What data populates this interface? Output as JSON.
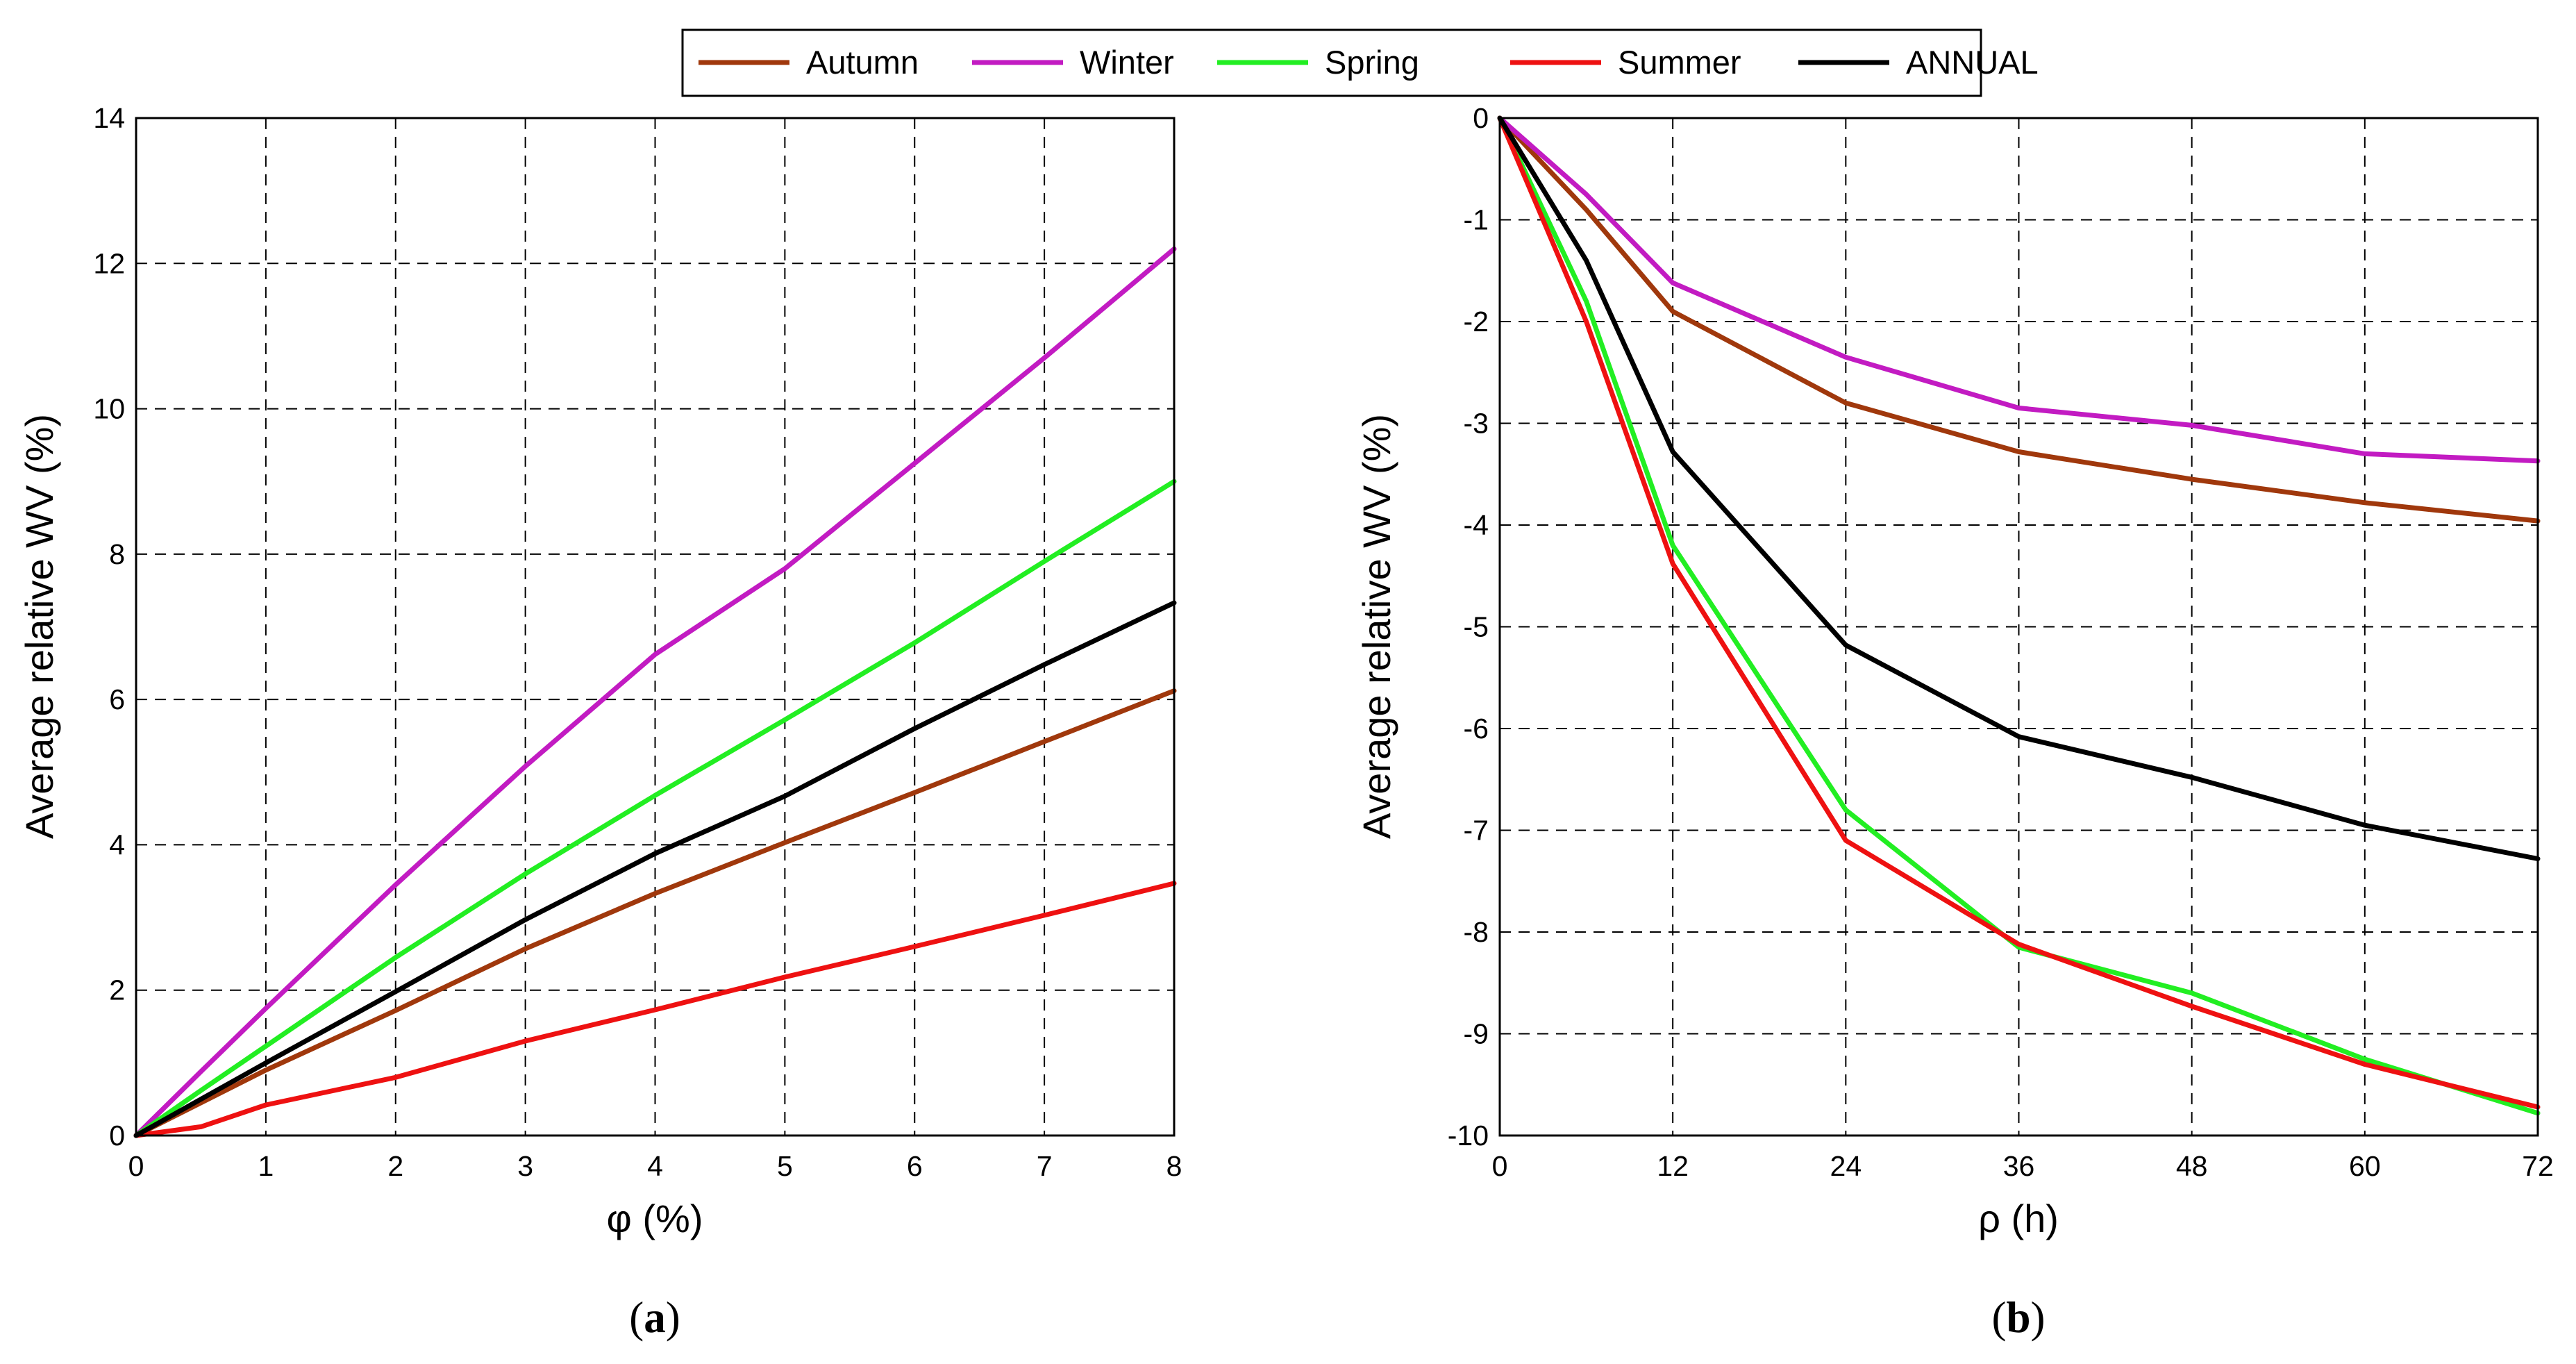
{
  "legend": {
    "entries": [
      {
        "name": "Autumn",
        "color": "#A0380C"
      },
      {
        "name": "Winter",
        "color": "#C21BC2"
      },
      {
        "name": "Spring",
        "color": "#22EE22"
      },
      {
        "name": "Summer",
        "color": "#EE1111"
      },
      {
        "name": "ANNUAL",
        "color": "#000000"
      }
    ]
  },
  "chart_data": [
    {
      "type": "line",
      "panel_label": "a",
      "xlabel": "φ (%)",
      "ylabel": "Average relative WV (%)",
      "xlim": [
        0,
        8
      ],
      "ylim": [
        0,
        14
      ],
      "xticks": [
        0,
        1,
        2,
        3,
        4,
        5,
        6,
        7,
        8
      ],
      "yticks": [
        0,
        2,
        4,
        6,
        8,
        10,
        12,
        14
      ],
      "grid": true,
      "series": [
        {
          "name": "Autumn",
          "color": "#A0380C",
          "x": [
            0,
            0.5,
            1,
            2,
            3,
            4,
            5,
            6,
            7,
            8
          ],
          "y": [
            0,
            0.45,
            0.9,
            1.72,
            2.57,
            3.33,
            4.03,
            4.72,
            5.42,
            6.12
          ]
        },
        {
          "name": "Winter",
          "color": "#C21BC2",
          "x": [
            0,
            0.5,
            1,
            2,
            3,
            4,
            5,
            6,
            7,
            8
          ],
          "y": [
            0,
            0.88,
            1.75,
            3.45,
            5.08,
            6.62,
            7.8,
            9.25,
            10.7,
            12.2
          ]
        },
        {
          "name": "Spring",
          "color": "#22EE22",
          "x": [
            0,
            0.5,
            1,
            2,
            3,
            4,
            5,
            6,
            7,
            8
          ],
          "y": [
            0,
            0.62,
            1.23,
            2.45,
            3.6,
            4.68,
            5.72,
            6.78,
            7.9,
            9.0
          ]
        },
        {
          "name": "Summer",
          "color": "#EE1111",
          "x": [
            0,
            0.5,
            1,
            2,
            3,
            4,
            5,
            6,
            7,
            8
          ],
          "y": [
            0,
            0.12,
            0.42,
            0.8,
            1.3,
            1.73,
            2.18,
            2.6,
            3.03,
            3.47
          ]
        },
        {
          "name": "ANNUAL",
          "color": "#000000",
          "x": [
            0,
            0.5,
            1,
            2,
            3,
            4,
            5,
            6,
            7,
            8
          ],
          "y": [
            0,
            0.5,
            1.0,
            1.98,
            2.97,
            3.88,
            4.67,
            5.6,
            6.48,
            7.33
          ]
        }
      ]
    },
    {
      "type": "line",
      "panel_label": "b",
      "xlabel": "ρ (h)",
      "ylabel": "Average relative WV (%)",
      "xlim": [
        0,
        72
      ],
      "ylim": [
        -10,
        0
      ],
      "xticks": [
        0,
        12,
        24,
        36,
        48,
        60,
        72
      ],
      "yticks": [
        0,
        -1,
        -2,
        -3,
        -4,
        -5,
        -6,
        -7,
        -8,
        -9,
        -10
      ],
      "grid": true,
      "series": [
        {
          "name": "Autumn",
          "color": "#A0380C",
          "x": [
            0,
            6,
            12,
            24,
            36,
            48,
            60,
            72
          ],
          "y": [
            0,
            -0.9,
            -1.9,
            -2.8,
            -3.28,
            -3.55,
            -3.78,
            -3.96
          ]
        },
        {
          "name": "Winter",
          "color": "#C21BC2",
          "x": [
            0,
            6,
            12,
            24,
            36,
            48,
            60,
            72
          ],
          "y": [
            0,
            -0.75,
            -1.62,
            -2.35,
            -2.85,
            -3.02,
            -3.3,
            -3.37
          ]
        },
        {
          "name": "Spring",
          "color": "#22EE22",
          "x": [
            0,
            6,
            12,
            24,
            36,
            48,
            60,
            72
          ],
          "y": [
            0,
            -1.8,
            -4.2,
            -6.8,
            -8.15,
            -8.6,
            -9.25,
            -9.78
          ]
        },
        {
          "name": "Summer",
          "color": "#EE1111",
          "x": [
            0,
            6,
            12,
            24,
            36,
            48,
            60,
            72
          ],
          "y": [
            0,
            -2.0,
            -4.38,
            -7.1,
            -8.12,
            -8.73,
            -9.3,
            -9.72
          ]
        },
        {
          "name": "ANNUAL",
          "color": "#000000",
          "x": [
            0,
            6,
            12,
            24,
            36,
            48,
            60,
            72
          ],
          "y": [
            0,
            -1.4,
            -3.28,
            -5.18,
            -6.08,
            -6.48,
            -6.95,
            -7.28
          ]
        }
      ]
    }
  ]
}
